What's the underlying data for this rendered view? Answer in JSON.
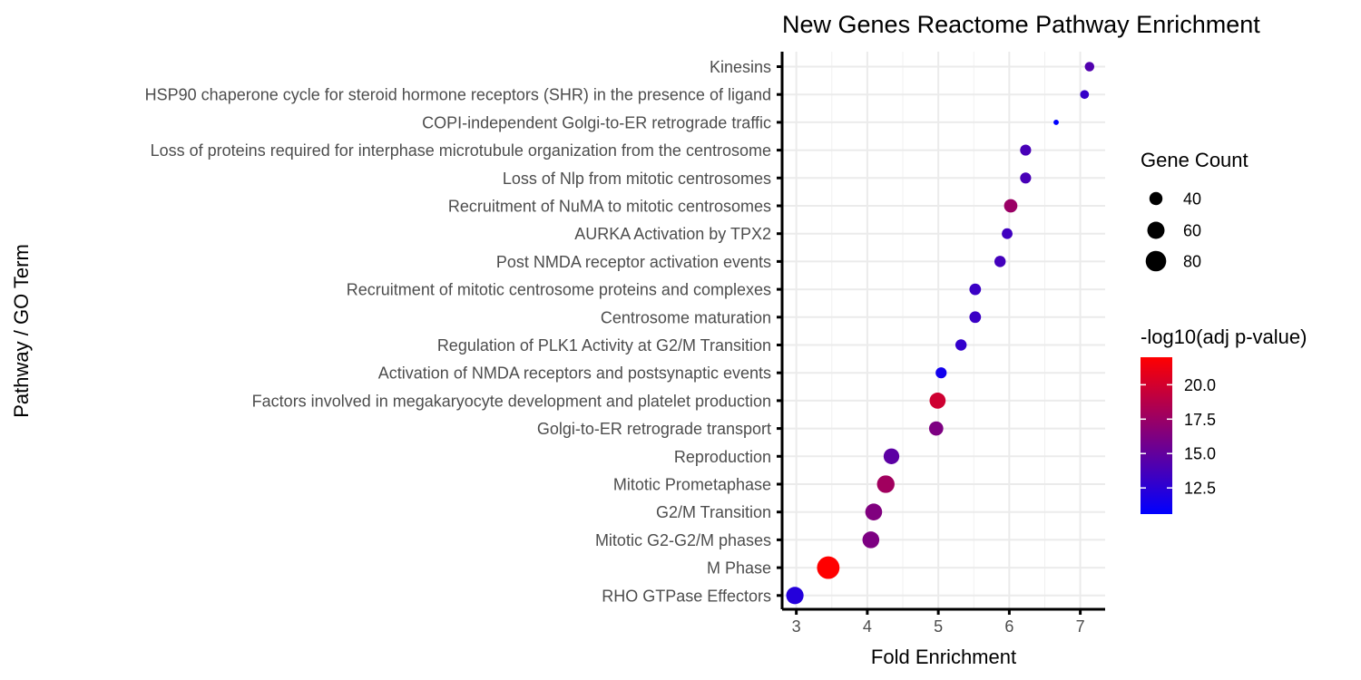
{
  "chart_data": {
    "type": "scatter",
    "title": "New Genes Reactome Pathway Enrichment",
    "xlabel": "Fold Enrichment",
    "ylabel": "Pathway / GO Term",
    "xlim": [
      2.8,
      7.35
    ],
    "xticks": [
      3,
      4,
      5,
      6,
      7
    ],
    "grid": true,
    "legend_position": "right",
    "categories": [
      "Kinesins",
      "HSP90 chaperone cycle for steroid hormone receptors (SHR) in the presence of ligand",
      "COPI-independent Golgi-to-ER retrograde traffic",
      "Loss of proteins required for interphase microtubule organization from the centrosome",
      "Loss of Nlp from mitotic centrosomes",
      "Recruitment of NuMA to mitotic centrosomes",
      "AURKA Activation by TPX2",
      "Post NMDA receptor activation events",
      "Recruitment of mitotic centrosome proteins and complexes",
      "Centrosome maturation",
      "Regulation of PLK1 Activity at G2/M Transition",
      "Activation of NMDA receptors and postsynaptic events",
      "Factors involved in megakaryocyte development and platelet production",
      "Golgi-to-ER retrograde transport",
      "Reproduction",
      "Mitotic Prometaphase",
      "G2/M Transition",
      "Mitotic G2-G2/M phases",
      "M Phase",
      "RHO GTPase Effectors"
    ],
    "points": [
      {
        "term": "Kinesins",
        "fold_enrichment": 7.13,
        "gene_count": 27,
        "neg_log10_adj_p": 14.2
      },
      {
        "term": "HSP90 chaperone cycle for steroid hormone receptors (SHR) in the presence of ligand",
        "fold_enrichment": 7.06,
        "gene_count": 25,
        "neg_log10_adj_p": 13.0
      },
      {
        "term": "COPI-independent Golgi-to-ER retrograde traffic",
        "fold_enrichment": 6.66,
        "gene_count": 17,
        "neg_log10_adj_p": 10.6
      },
      {
        "term": "Loss of proteins required for interphase microtubule organization from the centrosome",
        "fold_enrichment": 6.23,
        "gene_count": 32,
        "neg_log10_adj_p": 13.8
      },
      {
        "term": "Loss of Nlp from mitotic centrosomes",
        "fold_enrichment": 6.23,
        "gene_count": 32,
        "neg_log10_adj_p": 13.8
      },
      {
        "term": "Recruitment of NuMA to mitotic centrosomes",
        "fold_enrichment": 6.02,
        "gene_count": 41,
        "neg_log10_adj_p": 17.5
      },
      {
        "term": "AURKA Activation by TPX2",
        "fold_enrichment": 5.97,
        "gene_count": 31,
        "neg_log10_adj_p": 13.4
      },
      {
        "term": "Post NMDA receptor activation events",
        "fold_enrichment": 5.87,
        "gene_count": 33,
        "neg_log10_adj_p": 13.6
      },
      {
        "term": "Recruitment of mitotic centrosome proteins and complexes",
        "fold_enrichment": 5.52,
        "gene_count": 34,
        "neg_log10_adj_p": 13.2
      },
      {
        "term": "Centrosome maturation",
        "fold_enrichment": 5.52,
        "gene_count": 34,
        "neg_log10_adj_p": 13.2
      },
      {
        "term": "Regulation of PLK1 Activity at G2/M Transition",
        "fold_enrichment": 5.32,
        "gene_count": 33,
        "neg_log10_adj_p": 12.9
      },
      {
        "term": "Activation of NMDA receptors and postsynaptic events",
        "fold_enrichment": 5.04,
        "gene_count": 32,
        "neg_log10_adj_p": 11.4
      },
      {
        "term": "Factors involved in megakaryocyte development and platelet production",
        "fold_enrichment": 4.99,
        "gene_count": 54,
        "neg_log10_adj_p": 19.8
      },
      {
        "term": "Golgi-to-ER retrograde transport",
        "fold_enrichment": 4.97,
        "gene_count": 45,
        "neg_log10_adj_p": 16.2
      },
      {
        "term": "Reproduction",
        "fold_enrichment": 4.34,
        "gene_count": 52,
        "neg_log10_adj_p": 14.7
      },
      {
        "term": "Mitotic Prometaphase",
        "fold_enrichment": 4.26,
        "gene_count": 62,
        "neg_log10_adj_p": 17.8
      },
      {
        "term": "G2/M Transition",
        "fold_enrichment": 4.09,
        "gene_count": 58,
        "neg_log10_adj_p": 16.3
      },
      {
        "term": "Mitotic G2-G2/M phases",
        "fold_enrichment": 4.05,
        "gene_count": 58,
        "neg_log10_adj_p": 16.2
      },
      {
        "term": "M Phase",
        "fold_enrichment": 3.45,
        "gene_count": 94,
        "neg_log10_adj_p": 22.0
      },
      {
        "term": "RHO GTPase Effectors",
        "fold_enrichment": 2.98,
        "gene_count": 61,
        "neg_log10_adj_p": 12.2
      }
    ],
    "size_legend": {
      "title": "Gene Count",
      "entries": [
        40,
        60,
        80
      ]
    },
    "color_legend": {
      "title": "-log10(adj p-value)",
      "low_value": 10.6,
      "high_value": 22.0,
      "ticks": [
        {
          "label": "20.0",
          "value": 20.0
        },
        {
          "label": "17.5",
          "value": 17.5
        },
        {
          "label": "15.0",
          "value": 15.0
        },
        {
          "label": "12.5",
          "value": 12.5
        }
      ],
      "low_color": "#0000FF",
      "high_color": "#FF0000"
    }
  }
}
